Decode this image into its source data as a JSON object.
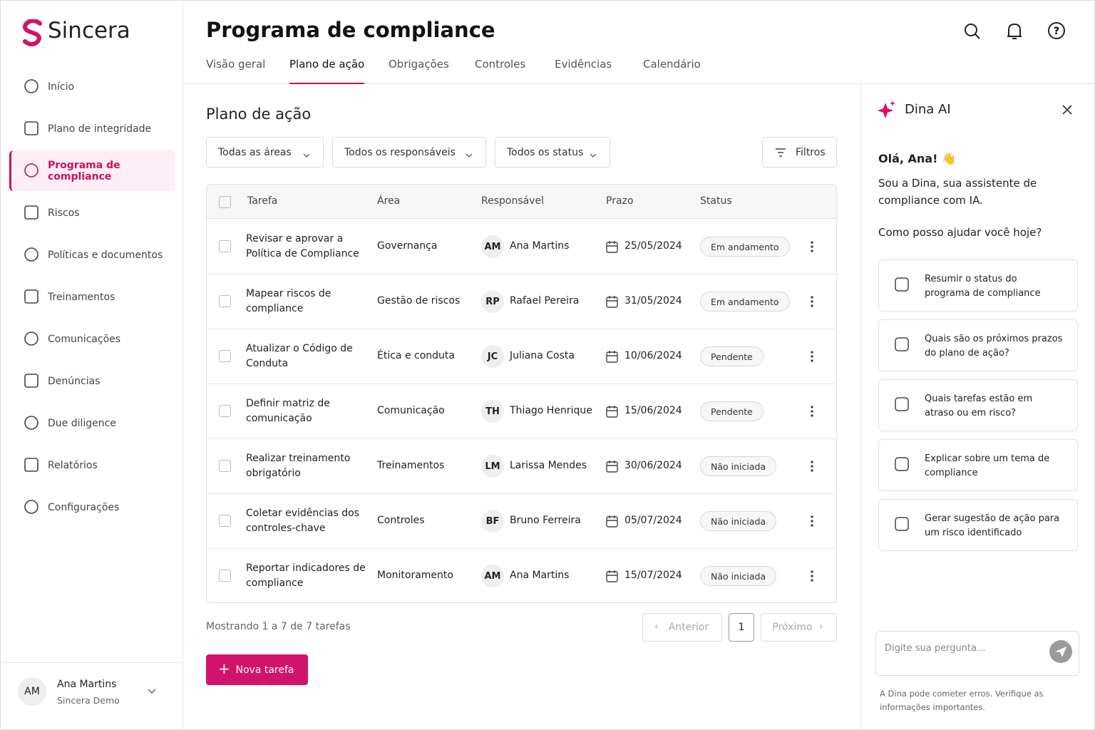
{
  "sidebar": {
    "brand": "Sincera",
    "nav": [
      "Início",
      "Plano de integridade",
      "Programa de compliance",
      "Riscos",
      "Políticas e documentos",
      "Treinamentos",
      "Comunicações",
      "Denúncias",
      "Due diligence",
      "Relatórios",
      "Configurações"
    ],
    "active": 2,
    "user": {
      "initials": "AM",
      "name": "Ana Martins",
      "org": "Sincera Demo"
    }
  },
  "header": {
    "title": "Programa de compliance",
    "tabs": [
      "Visão geral",
      "Plano de ação",
      "Obrigações",
      "Controles",
      "Evidências",
      "Calendário"
    ],
    "active_tab": 1
  },
  "main": {
    "title": "Plano de ação",
    "filters": [
      "Todas as áreas",
      "Todos os responsáveis",
      "Todos os status"
    ],
    "filters_button": "Filtros",
    "columns": [
      "Tarefa",
      "Área",
      "Responsável",
      "Prazo",
      "Status"
    ],
    "rows": [
      {
        "task": "Revisar e aprovar a Política de Compliance",
        "area": "Governança",
        "initials": "AM",
        "owner": "Ana Martins",
        "due": "25/05/2024",
        "status": "Em andamento"
      },
      {
        "task": "Mapear riscos de compliance",
        "area": "Gestão de riscos",
        "initials": "RP",
        "owner": "Rafael Pereira",
        "due": "31/05/2024",
        "status": "Em andamento"
      },
      {
        "task": "Atualizar o Código de Conduta",
        "area": "Ética e conduta",
        "initials": "JC",
        "owner": "Juliana Costa",
        "due": "10/06/2024",
        "status": "Pendente"
      },
      {
        "task": "Definir matriz de comunicação",
        "area": "Comunicação",
        "initials": "TH",
        "owner": "Thiago Henrique",
        "due": "15/06/2024",
        "status": "Pendente"
      },
      {
        "task": "Realizar treinamento obrigatório",
        "area": "Treinamentos",
        "initials": "LM",
        "owner": "Larissa Mendes",
        "due": "30/06/2024",
        "status": "Não iniciada"
      },
      {
        "task": "Coletar evidências dos controles-chave",
        "area": "Controles",
        "initials": "BF",
        "owner": "Bruno Ferreira",
        "due": "05/07/2024",
        "status": "Não iniciada"
      },
      {
        "task": "Reportar indicadores de compliance",
        "area": "Monitoramento",
        "initials": "AM",
        "owner": "Ana Martins",
        "due": "15/07/2024",
        "status": "Não iniciada"
      }
    ],
    "summary": "Mostrando 1 a 7 de 7 tarefas",
    "prev": "Anterior",
    "page": 1,
    "next": "Próximo",
    "new_task": "Nova tarefa"
  },
  "assistant": {
    "title": "Dina AI",
    "greeting": "Olá, Ana! 👋",
    "intro": "Sou a Dina, sua assistente de compliance com IA.",
    "question": "Como posso ajudar você hoje?",
    "suggestions": [
      "Resumir o status do programa de compliance",
      "Quais são os próximos prazos do plano de ação?",
      "Quais tarefas estão em atraso ou em risco?",
      "Explicar sobre um tema de compliance",
      "Gerar sugestão de ação para um risco identificado"
    ],
    "placeholder": "Digite sua pergunta...",
    "disclaimer": "A Dina pode cometer erros. Verifique as informações importantes."
  }
}
